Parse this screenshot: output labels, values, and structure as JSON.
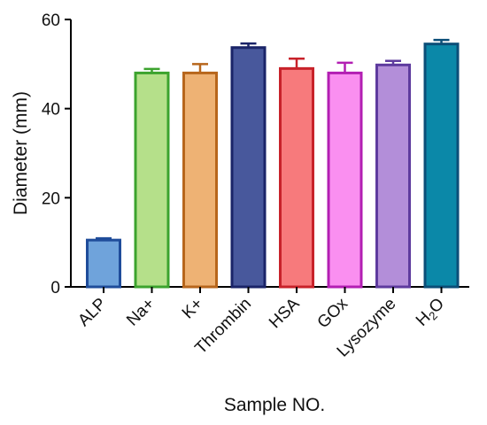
{
  "chart_data": {
    "type": "bar",
    "title": "",
    "xlabel": "Sample NO.",
    "ylabel": "Diameter (mm)",
    "ylim": [
      0,
      60
    ],
    "yticks": [
      0,
      20,
      40,
      60
    ],
    "categories": [
      "ALP",
      "Na+",
      "K+",
      "Thrombin",
      "HSA",
      "GOx",
      "Lysozyme",
      "H2O"
    ],
    "values": [
      10.5,
      48,
      48,
      53.7,
      49,
      48,
      49.8,
      54.5
    ],
    "errors": [
      0.4,
      0.9,
      2.0,
      0.9,
      2.2,
      2.3,
      0.9,
      0.9
    ],
    "fill_colors": [
      "#6FA3DB",
      "#B5E08A",
      "#EEB274",
      "#48589C",
      "#F77A7C",
      "#FA8FF0",
      "#B38ED9",
      "#0B88A8"
    ],
    "edge_colors": [
      "#1F4C9A",
      "#3CA32E",
      "#B7661C",
      "#1A2468",
      "#C8222A",
      "#B31FB3",
      "#5E3B9E",
      "#0B4E78"
    ],
    "legend": "none",
    "grid": false
  }
}
